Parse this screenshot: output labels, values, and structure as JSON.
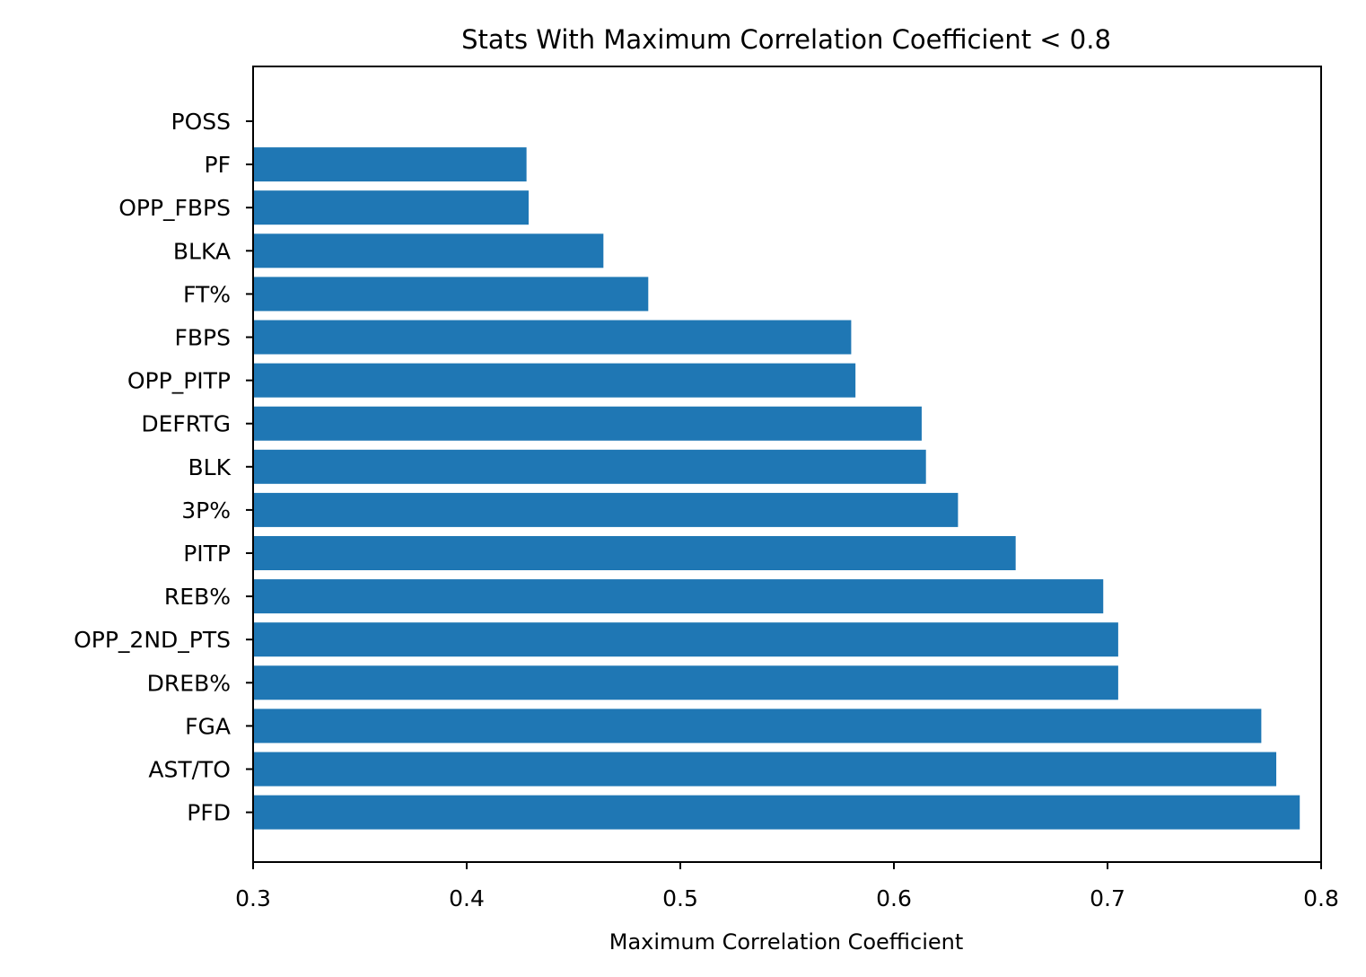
{
  "chart_data": {
    "type": "bar",
    "orientation": "horizontal",
    "title": "Stats With Maximum Correlation Coefficient < 0.8",
    "xlabel": "Maximum Correlation Coefficient",
    "ylabel": "",
    "xlim": [
      0.3,
      0.8
    ],
    "x_ticks": [
      "0.3",
      "0.4",
      "0.5",
      "0.6",
      "0.7",
      "0.8"
    ],
    "grid": false,
    "bar_color": "#1f77b4",
    "categories": [
      "POSS",
      "PF",
      "OPP_FBPS",
      "BLKA",
      "FT%",
      "FBPS",
      "OPP_PITP",
      "DEFRTG",
      "BLK",
      "3P%",
      "PITP",
      "REB%",
      "OPP_2ND_PTS",
      "DREB%",
      "FGA",
      "AST/TO",
      "PFD"
    ],
    "values": [
      0.3,
      0.428,
      0.429,
      0.464,
      0.485,
      0.58,
      0.582,
      0.613,
      0.615,
      0.63,
      0.657,
      0.698,
      0.705,
      0.705,
      0.772,
      0.779,
      0.79
    ]
  }
}
